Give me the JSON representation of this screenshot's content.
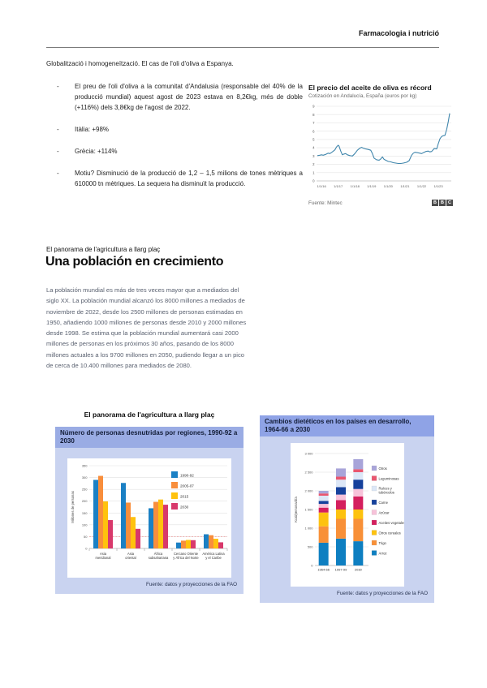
{
  "header": {
    "title": "Farmacologia i nutrició"
  },
  "intro": "Globalització i homogeneïtzació. El cas de l'oli d'oliva a Espanya.",
  "bullets": [
    "El preu de l'oli d'oliva a la comunitat d'Andalusia (responsable del 40% de la producció mundial) aquest agost de 2023 estava en 8,2€kg, més de doble (+116%) dels 3,8€kg de l'agost de 2022.",
    "Itàlia: +98%",
    "Grècia: +114%",
    "Motiu? Disminució de la producció de 1,2 – 1,5 milions de tones mètriques a 610000 tn mètriques. La sequera ha disminuït la producció."
  ],
  "section": {
    "kicker": "El panorama de l'agricultura a llarg plaç",
    "heading": "Una población en crecimiento",
    "paragraph": "La población mundial es más de tres veces mayor que a mediados del siglo XX. La población mundial alcanzó los 8000 millones a mediados de noviembre de 2022, desde los 2500 millones de personas estimadas en 1950, añadiendo 1000 millones de personas desde 2010 y 2000 millones desde 1998. Se estima que la población mundial aumentará casi 2000 millones de personas en los próximos 30 años, pasando de los 8000 millones actuales a los 9700 millones en 2050, pudiendo llegar a un pico de cerca de 10.400 millones para mediados de 2080.",
    "caption": "El panorama de l'agricultura a llarg plaç"
  },
  "chart_data": [
    {
      "type": "line",
      "title": "El precio del aceite de oliva es récord",
      "subtitle": "Cotización en Andalucía, España (euros por kg)",
      "source": "Fuente: Mintec",
      "brand": "BBC",
      "ylim": [
        0,
        9
      ],
      "ytick_step": 1,
      "x_labels": [
        "1/1/16",
        "1/1/17",
        "1/1/18",
        "1/1/19",
        "1/1/20",
        "1/1/21",
        "1/1/22",
        "1/1/23"
      ],
      "line_color": "#4086ac",
      "points": [
        [
          2015.75,
          3.05
        ],
        [
          2015.9,
          3.1
        ],
        [
          2016.0,
          3.15
        ],
        [
          2016.1,
          3.1
        ],
        [
          2016.25,
          3.2
        ],
        [
          2016.4,
          3.35
        ],
        [
          2016.5,
          3.3
        ],
        [
          2016.65,
          3.5
        ],
        [
          2016.8,
          3.75
        ],
        [
          2016.9,
          4.1
        ],
        [
          2017.0,
          4.3
        ],
        [
          2017.05,
          4.2
        ],
        [
          2017.15,
          3.6
        ],
        [
          2017.25,
          3.15
        ],
        [
          2017.35,
          3.25
        ],
        [
          2017.45,
          3.3
        ],
        [
          2017.55,
          3.15
        ],
        [
          2017.7,
          3.05
        ],
        [
          2017.85,
          3.0
        ],
        [
          2018.0,
          3.3
        ],
        [
          2018.15,
          3.7
        ],
        [
          2018.3,
          3.95
        ],
        [
          2018.4,
          4.05
        ],
        [
          2018.5,
          3.95
        ],
        [
          2018.65,
          3.85
        ],
        [
          2018.8,
          3.8
        ],
        [
          2018.95,
          3.7
        ],
        [
          2019.05,
          3.3
        ],
        [
          2019.15,
          2.75
        ],
        [
          2019.3,
          2.55
        ],
        [
          2019.45,
          2.5
        ],
        [
          2019.55,
          2.65
        ],
        [
          2019.65,
          2.9
        ],
        [
          2019.75,
          2.6
        ],
        [
          2019.9,
          2.45
        ],
        [
          2020.0,
          2.35
        ],
        [
          2020.15,
          2.3
        ],
        [
          2020.3,
          2.2
        ],
        [
          2020.45,
          2.15
        ],
        [
          2020.6,
          2.1
        ],
        [
          2020.75,
          2.1
        ],
        [
          2020.9,
          2.15
        ],
        [
          2021.0,
          2.2
        ],
        [
          2021.1,
          2.25
        ],
        [
          2021.25,
          2.45
        ],
        [
          2021.4,
          3.1
        ],
        [
          2021.5,
          3.35
        ],
        [
          2021.6,
          3.45
        ],
        [
          2021.75,
          3.4
        ],
        [
          2021.9,
          3.35
        ],
        [
          2022.0,
          3.3
        ],
        [
          2022.1,
          3.4
        ],
        [
          2022.25,
          3.55
        ],
        [
          2022.4,
          3.6
        ],
        [
          2022.5,
          3.5
        ],
        [
          2022.6,
          3.55
        ],
        [
          2022.75,
          3.9
        ],
        [
          2022.9,
          3.85
        ],
        [
          2023.0,
          4.5
        ],
        [
          2023.1,
          5.1
        ],
        [
          2023.2,
          5.35
        ],
        [
          2023.3,
          5.45
        ],
        [
          2023.4,
          5.5
        ],
        [
          2023.5,
          6.2
        ],
        [
          2023.6,
          7.2
        ],
        [
          2023.68,
          8.15
        ]
      ]
    },
    {
      "type": "bar",
      "title": "Número de personas desnutridas por regiones, 1990-92 a 2030",
      "ylabel": "Millones de personas",
      "source": "Fuente: datos y proyecciones de la FAO",
      "ylim": [
        0,
        350
      ],
      "ytick_step": 50,
      "dashed_line_y": 50,
      "dashed_line_color": "#ef8a8a",
      "categories": [
        [
          "Asia",
          "meridional"
        ],
        [
          "Asia",
          "oriental"
        ],
        [
          "África",
          "subsahariana"
        ],
        [
          "Cercano Oriente",
          "y África del Norte"
        ],
        [
          "América Latina",
          "y el Caribe"
        ]
      ],
      "series": [
        {
          "name": "1990-92",
          "color": "#1b80c4",
          "values": [
            290,
            277,
            170,
            25,
            60
          ]
        },
        {
          "name": "2005-07",
          "color": "#f88e3c",
          "values": [
            307,
            194,
            197,
            33,
            56
          ]
        },
        {
          "name": "2015",
          "color": "#ffc20e",
          "values": [
            199,
            133,
            207,
            36,
            41
          ]
        },
        {
          "name": "2030",
          "color": "#d8396b",
          "values": [
            120,
            83,
            185,
            35,
            26
          ]
        }
      ]
    },
    {
      "type": "stacked-bar",
      "title": "Cambios dietéticos en los países en desarrollo, 1964-66 a 2030",
      "ylabel": "Kcal/persona/día",
      "source": "Fuente: datos y proyecciones de la FAO",
      "ylim": [
        0,
        3000
      ],
      "ytick_step": 500,
      "categories": [
        "1964-66",
        "1997-99",
        "2030"
      ],
      "series": [
        {
          "name": "Arroz",
          "color": "#0e7fc1",
          "values": [
            610,
            720,
            650
          ]
        },
        {
          "name": "Trigo",
          "color": "#f89038",
          "values": [
            440,
            530,
            600
          ]
        },
        {
          "name": "Otros cereales",
          "color": "#fdc20f",
          "values": [
            370,
            250,
            250
          ]
        },
        {
          "name": "Aceites vegetales",
          "color": "#d41f5e",
          "values": [
            130,
            250,
            350
          ]
        },
        {
          "name": "Azúcar",
          "color": "#f7c2d9",
          "values": [
            100,
            150,
            200
          ]
        },
        {
          "name": "Carne",
          "color": "#16419c",
          "values": [
            80,
            200,
            250
          ]
        },
        {
          "name": "Raíces y tubérculos",
          "color": "#dce7f7",
          "values": [
            140,
            200,
            200
          ]
        },
        {
          "name": "Leguminosas",
          "color": "#e9566f",
          "values": [
            60,
            80,
            80
          ]
        },
        {
          "name": "Otros",
          "color": "#a8a4d9",
          "values": [
            70,
            220,
            270
          ]
        }
      ],
      "legend_order": "reversed"
    }
  ]
}
